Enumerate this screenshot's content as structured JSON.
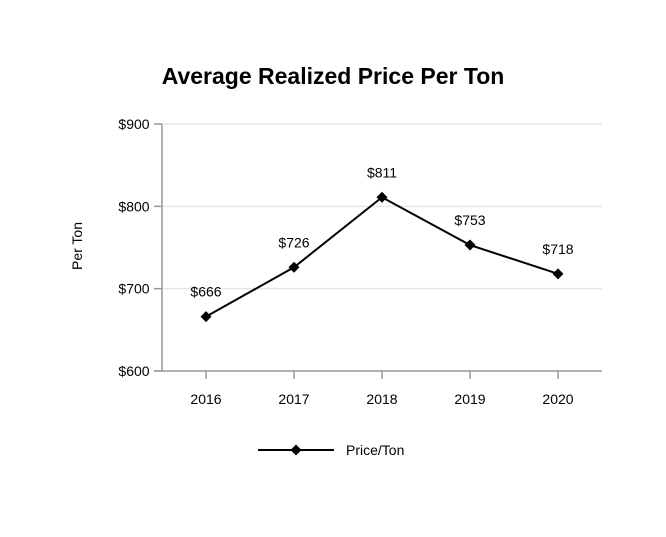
{
  "chart_data": {
    "type": "line",
    "title": "Average Realized Price Per Ton",
    "xlabel": "",
    "ylabel": "Per Ton",
    "categories": [
      "2016",
      "2017",
      "2018",
      "2019",
      "2020"
    ],
    "series": [
      {
        "name": "Price/Ton",
        "values": [
          666,
          726,
          811,
          753,
          718
        ],
        "data_labels": [
          "$666",
          "$726",
          "$811",
          "$753",
          "$718"
        ],
        "color": "#000000",
        "marker": "diamond"
      }
    ],
    "ylim": [
      600,
      900
    ],
    "yticks": [
      600,
      700,
      800,
      900
    ],
    "ytick_labels": [
      "$600",
      "$700",
      "$800",
      "$900"
    ],
    "grid": true,
    "legend": "bottom-center"
  },
  "colors": {
    "gridline": "#e6e6e6",
    "axis": "#999999",
    "text": "#000000"
  }
}
